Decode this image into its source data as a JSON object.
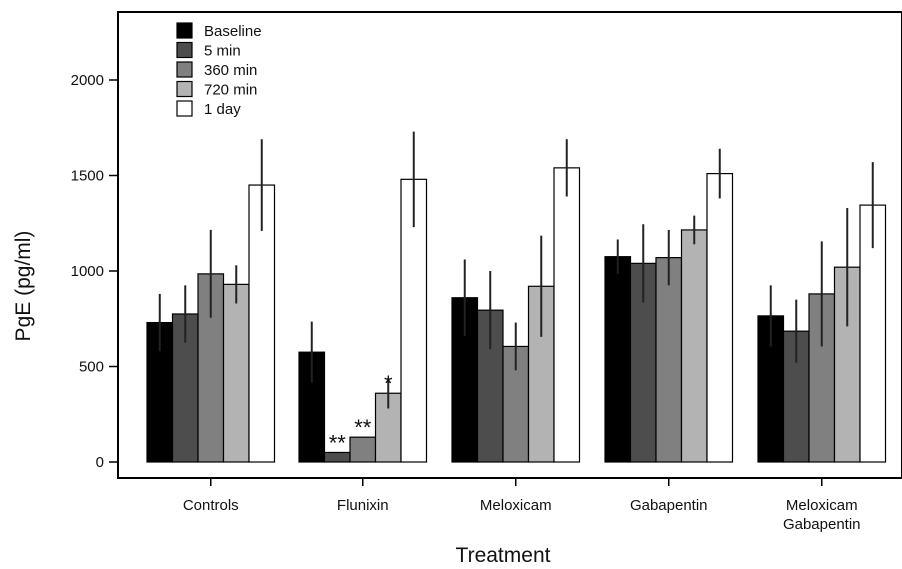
{
  "chart_data": {
    "type": "bar",
    "title": "",
    "xlabel": "Treatment",
    "ylabel": "PgE (pg/ml)",
    "ylim": [
      0,
      2000
    ],
    "yticks": [
      0,
      500,
      1000,
      1500,
      2000
    ],
    "grid": false,
    "legend_position": "top-left",
    "categories": [
      "Controls",
      "Flunixin",
      "Meloxicam",
      "Gabapentin",
      "Meloxicam\nGabapentin"
    ],
    "series": [
      {
        "name": "Baseline",
        "color": "#000000",
        "values": [
          730,
          575,
          860,
          1075,
          765
        ],
        "errors": [
          150,
          160,
          200,
          90,
          160
        ]
      },
      {
        "name": "5 min",
        "color": "#4d4d4d",
        "values": [
          775,
          50,
          795,
          1040,
          685
        ],
        "errors": [
          150,
          0,
          205,
          205,
          165
        ]
      },
      {
        "name": "360 min",
        "color": "#808080",
        "values": [
          985,
          130,
          605,
          1070,
          880
        ],
        "errors": [
          230,
          0,
          125,
          145,
          275
        ]
      },
      {
        "name": "720 min",
        "color": "#b3b3b3",
        "values": [
          930,
          360,
          920,
          1215,
          1020
        ],
        "errors": [
          100,
          80,
          265,
          75,
          310
        ]
      },
      {
        "name": "1 day",
        "color": "#ffffff",
        "values": [
          1450,
          1480,
          1540,
          1510,
          1345
        ],
        "errors": [
          240,
          250,
          150,
          130,
          225
        ]
      }
    ],
    "annotations": [
      {
        "text": "**",
        "category": "Flunixin",
        "series": "5 min"
      },
      {
        "text": "**",
        "category": "Flunixin",
        "series": "360 min"
      },
      {
        "text": "*",
        "category": "Flunixin",
        "series": "720 min"
      }
    ]
  }
}
